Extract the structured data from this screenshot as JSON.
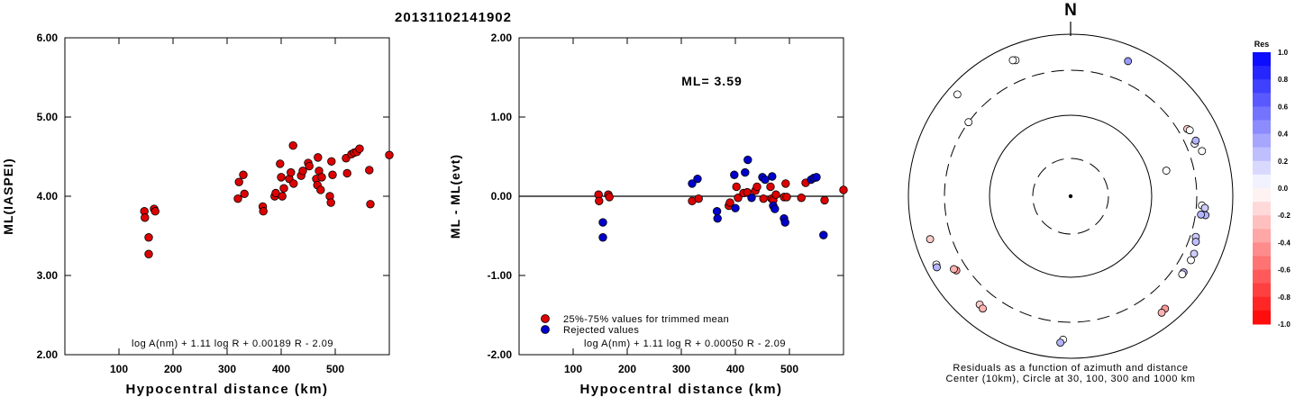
{
  "title": "20131102141902",
  "chart_data": [
    {
      "type": "scatter",
      "ylabel": "ML(IASPEI)",
      "xlabel": "Hypocentral distance (km)",
      "xlim": [
        0,
        600
      ],
      "ylim": [
        2.0,
        6.0
      ],
      "xticks": [
        "100",
        "200",
        "300",
        "400",
        "500"
      ],
      "yticks": [
        "2.00",
        "3.00",
        "4.00",
        "5.00",
        "6.00"
      ],
      "formula": "log A(nm) + 1.11 log R + 0.00189 R - 2.09",
      "grid": false,
      "series": [
        {
          "color": "#dd0000",
          "points": [
            [
              147,
              3.81
            ],
            [
              148,
              3.73
            ],
            [
              155,
              3.48
            ],
            [
              155,
              3.27
            ],
            [
              165,
              3.84
            ],
            [
              167,
              3.81
            ],
            [
              320,
              3.97
            ],
            [
              322,
              4.18
            ],
            [
              330,
              4.27
            ],
            [
              332,
              4.03
            ],
            [
              366,
              3.87
            ],
            [
              367,
              3.81
            ],
            [
              388,
              4.0
            ],
            [
              390,
              4.04
            ],
            [
              398,
              4.41
            ],
            [
              400,
              4.24
            ],
            [
              402,
              4.0
            ],
            [
              405,
              4.1
            ],
            [
              415,
              4.22
            ],
            [
              418,
              4.3
            ],
            [
              422,
              4.64
            ],
            [
              423,
              4.16
            ],
            [
              437,
              4.26
            ],
            [
              440,
              4.32
            ],
            [
              450,
              4.42
            ],
            [
              452,
              4.38
            ],
            [
              465,
              4.22
            ],
            [
              467,
              4.14
            ],
            [
              468,
              4.49
            ],
            [
              470,
              4.32
            ],
            [
              473,
              4.08
            ],
            [
              475,
              4.24
            ],
            [
              490,
              4.0
            ],
            [
              492,
              3.92
            ],
            [
              493,
              4.44
            ],
            [
              495,
              4.27
            ],
            [
              520,
              4.48
            ],
            [
              522,
              4.29
            ],
            [
              530,
              4.53
            ],
            [
              535,
              4.55
            ],
            [
              540,
              4.56
            ],
            [
              545,
              4.6
            ],
            [
              563,
              4.33
            ],
            [
              565,
              3.9
            ],
            [
              600,
              4.52
            ]
          ]
        }
      ]
    },
    {
      "type": "scatter",
      "ylabel": "ML - ML(evt)",
      "xlabel": "Hypocentral distance (km)",
      "xlim": [
        0,
        600
      ],
      "ylim": [
        -2.0,
        2.0
      ],
      "xticks": [
        "100",
        "200",
        "300",
        "400",
        "500"
      ],
      "yticks": [
        "-2.00",
        "-1.00",
        "0.00",
        "1.00",
        "2.00"
      ],
      "annotation": "ML= 3.59",
      "formula": "log A(nm) + 1.11 log R + 0.00050 R - 2.09",
      "legend": [
        "25%-75% values for trimmed mean",
        "Rejected values"
      ],
      "legend_position": "bottom-left",
      "zero_line": 0.0,
      "series": [
        {
          "name": "25%-75% values for trimmed mean",
          "color": "#dd0000",
          "points": [
            [
              147,
              0.02
            ],
            [
              148,
              -0.06
            ],
            [
              165,
              0.02
            ],
            [
              167,
              -0.01
            ],
            [
              320,
              -0.06
            ],
            [
              332,
              -0.03
            ],
            [
              388,
              -0.12
            ],
            [
              390,
              -0.08
            ],
            [
              402,
              0.12
            ],
            [
              405,
              -0.02
            ],
            [
              415,
              0.04
            ],
            [
              422,
              0.05
            ],
            [
              437,
              0.07
            ],
            [
              440,
              0.12
            ],
            [
              452,
              -0.03
            ],
            [
              465,
              0.12
            ],
            [
              467,
              -0.03
            ],
            [
              470,
              -0.05
            ],
            [
              475,
              0.02
            ],
            [
              490,
              -0.01
            ],
            [
              493,
              0.16
            ],
            [
              495,
              -0.01
            ],
            [
              522,
              -0.02
            ],
            [
              530,
              0.17
            ],
            [
              565,
              -0.05
            ],
            [
              600,
              0.08
            ]
          ]
        },
        {
          "name": "Rejected values",
          "color": "#0000cc",
          "points": [
            [
              155,
              -0.33
            ],
            [
              155,
              -0.52
            ],
            [
              320,
              0.16
            ],
            [
              330,
              0.22
            ],
            [
              366,
              -0.19
            ],
            [
              367,
              -0.28
            ],
            [
              398,
              0.27
            ],
            [
              400,
              -0.15
            ],
            [
              418,
              0.3
            ],
            [
              423,
              0.46
            ],
            [
              430,
              -0.02
            ],
            [
              450,
              0.24
            ],
            [
              455,
              0.21
            ],
            [
              468,
              0.25
            ],
            [
              470,
              -0.12
            ],
            [
              473,
              -0.16
            ],
            [
              490,
              -0.28
            ],
            [
              492,
              -0.33
            ],
            [
              540,
              0.21
            ],
            [
              545,
              0.23
            ],
            [
              550,
              0.24
            ],
            [
              563,
              -0.49
            ]
          ]
        }
      ]
    },
    {
      "type": "scatter",
      "subtype": "polar",
      "north_label": "N",
      "caption_line1": "Residuals as a function of azimuth and distance",
      "caption_line2": "Center (10km), Circle at 30, 100, 300 and 1000 km",
      "rings_km": [
        30,
        100,
        300,
        1000
      ],
      "colorbar_title": "Res",
      "colorbar_ticks": [
        "1.0",
        "0.8",
        "0.6",
        "0.4",
        "0.2",
        "0.0",
        "-0.2",
        "-0.4",
        "-0.6",
        "-0.8",
        "-1.0"
      ],
      "colorbar_range": [
        -1.0,
        1.0
      ],
      "stations": [
        {
          "az": 23,
          "dist_km": 600,
          "res": 0.4
        },
        {
          "az": 338,
          "dist_km": 600,
          "res": 0.0
        },
        {
          "az": 337,
          "dist_km": 620,
          "res": 0.0
        },
        {
          "az": 312,
          "dist_km": 720,
          "res": 0.0
        },
        {
          "az": 306,
          "dist_km": 300,
          "res": 0.0
        },
        {
          "az": 75,
          "dist_km": 155,
          "res": 0.0
        },
        {
          "az": 60,
          "dist_km": 400,
          "res": -0.2
        },
        {
          "az": 61,
          "dist_km": 420,
          "res": 0.0
        },
        {
          "az": 67,
          "dist_km": 400,
          "res": 0.05
        },
        {
          "az": 66,
          "dist_km": 430,
          "res": 0.3
        },
        {
          "az": 71,
          "dist_km": 460,
          "res": 0.0
        },
        {
          "az": 94,
          "dist_km": 360,
          "res": 0.0
        },
        {
          "az": 95,
          "dist_km": 400,
          "res": 0.2
        },
        {
          "az": 98,
          "dist_km": 420,
          "res": 0.3
        },
        {
          "az": 98,
          "dist_km": 360,
          "res": 0.3
        },
        {
          "az": 108,
          "dist_km": 360,
          "res": 0.2
        },
        {
          "az": 110,
          "dist_km": 380,
          "res": 0.25
        },
        {
          "az": 115,
          "dist_km": 420,
          "res": 0.2
        },
        {
          "az": 118,
          "dist_km": 420,
          "res": 0.0
        },
        {
          "az": 124,
          "dist_km": 420,
          "res": 0.3
        },
        {
          "az": 125,
          "dist_km": 420,
          "res": 0.0
        },
        {
          "az": 140,
          "dist_km": 600,
          "res": -0.4
        },
        {
          "az": 142,
          "dist_km": 620,
          "res": -0.3
        },
        {
          "az": 183,
          "dist_km": 540,
          "res": 0.0
        },
        {
          "az": 184,
          "dist_km": 600,
          "res": 0.3
        },
        {
          "az": 220,
          "dist_km": 500,
          "res": -0.2
        },
        {
          "az": 218,
          "dist_km": 520,
          "res": -0.3
        },
        {
          "az": 237,
          "dist_km": 420,
          "res": -0.4
        },
        {
          "az": 238,
          "dist_km": 440,
          "res": -0.3
        },
        {
          "az": 253,
          "dist_km": 600,
          "res": -0.2
        },
        {
          "az": 243,
          "dist_km": 680,
          "res": 0.0
        },
        {
          "az": 242,
          "dist_km": 700,
          "res": 0.3
        }
      ]
    }
  ]
}
